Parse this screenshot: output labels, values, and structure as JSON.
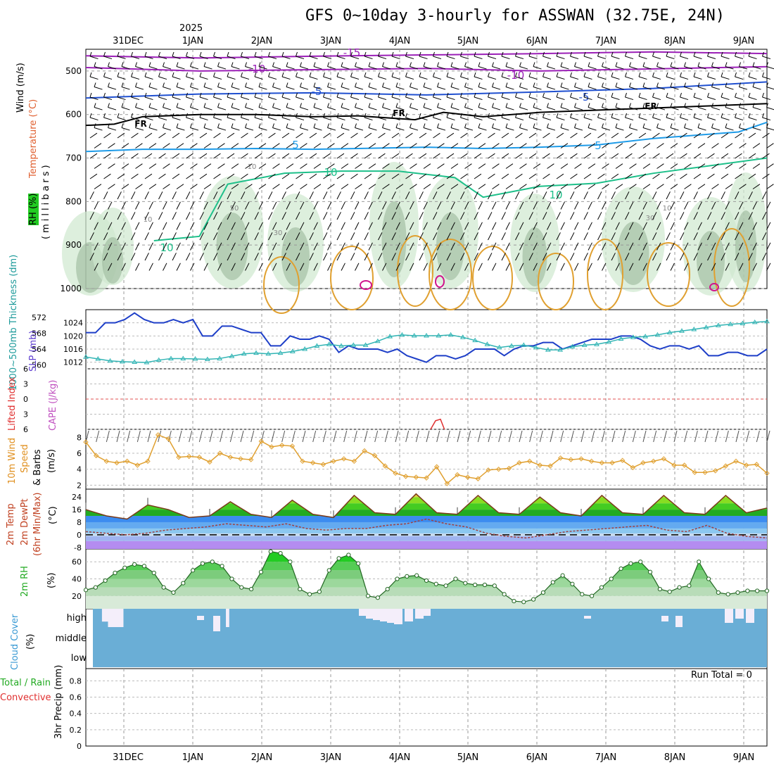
{
  "title": "GFS 0~10day 3-hourly for ASSWAN (32.75E, 24N)",
  "year_label": "2025",
  "day_labels": [
    "31DEC",
    "1JAN",
    "2JAN",
    "3JAN",
    "4JAN",
    "5JAN",
    "6JAN",
    "7JAN",
    "8JAN",
    "9JAN"
  ],
  "colors": {
    "purple": "#9b1fb7",
    "blue_dark": "#2050d0",
    "black": "#000000",
    "cyan": "#1e9be8",
    "green_line": "#1ec08a",
    "orange": "#e0a030",
    "magenta": "#d0148c",
    "slp": "#1e3fc8",
    "thickness": "#30b4b4",
    "wind10m": "#e0a030",
    "rh_green": "#22cc22",
    "cloud": "#6aaed6"
  },
  "chart_data": [
    {
      "panel": "upper_air",
      "type": "line",
      "title": "GFS 0~10day 3-hourly for ASSWAN (32.75E, 24N)",
      "ylabel": "(millibars)",
      "side_labels": [
        "Wind (m/s)",
        "Temperature (°C)",
        "RH (%)"
      ],
      "y_ticks": [
        "500",
        "600",
        "700",
        "800",
        "900",
        "1000"
      ],
      "ylim": [
        450,
        1000
      ],
      "contour_labels": [
        "-15",
        "-10",
        "-10",
        "-5",
        "-5",
        "FR",
        "FR",
        "FR",
        "5",
        "5",
        "10",
        "10",
        "10"
      ],
      "rh_labels": [
        "10",
        "50",
        "30",
        "10",
        "30",
        "10"
      ],
      "series": [
        {
          "label": "-15",
          "values": [
            [
              0,
              465
            ],
            [
              20,
              470
            ],
            [
              40,
              466
            ],
            [
              60,
              463
            ],
            [
              80,
              460
            ],
            [
              100,
              456
            ],
            [
              120,
              460
            ]
          ]
        },
        {
          "label": "-10",
          "values": [
            [
              0,
              492
            ],
            [
              20,
              500
            ],
            [
              40,
              497
            ],
            [
              60,
              494
            ],
            [
              80,
              500
            ],
            [
              100,
              495
            ],
            [
              120,
              490
            ]
          ]
        },
        {
          "label": "-5",
          "values": [
            [
              0,
              562
            ],
            [
              20,
              553
            ],
            [
              40,
              550
            ],
            [
              60,
              555
            ],
            [
              80,
              548
            ],
            [
              100,
              540
            ],
            [
              120,
              525
            ]
          ]
        },
        {
          "label": "FR",
          "values": [
            [
              0,
              625
            ],
            [
              5,
              622
            ],
            [
              10,
              605
            ],
            [
              20,
              600
            ],
            [
              30,
              600
            ],
            [
              40,
              605
            ],
            [
              48,
              603
            ],
            [
              58,
              612
            ],
            [
              63,
              595
            ],
            [
              70,
              605
            ],
            [
              80,
              595
            ],
            [
              100,
              585
            ],
            [
              120,
              575
            ]
          ]
        },
        {
          "label": "5",
          "values": [
            [
              0,
              685
            ],
            [
              10,
              680
            ],
            [
              20,
              680
            ],
            [
              30,
              678
            ],
            [
              40,
              680
            ],
            [
              60,
              675
            ],
            [
              70,
              678
            ],
            [
              80,
              675
            ],
            [
              90,
              670
            ],
            [
              100,
              655
            ],
            [
              115,
              640
            ],
            [
              120,
              618
            ]
          ]
        },
        {
          "label": "10",
          "values": [
            [
              12,
              890
            ],
            [
              20,
              880
            ],
            [
              25,
              760
            ],
            [
              35,
              735
            ],
            [
              45,
              730
            ],
            [
              55,
              730
            ],
            [
              65,
              745
            ],
            [
              70,
              790
            ],
            [
              80,
              765
            ],
            [
              90,
              758
            ],
            [
              100,
              735
            ],
            [
              120,
              700
            ]
          ]
        }
      ]
    },
    {
      "panel": "slp_thickness",
      "type": "line",
      "ylabel_left": "1000~500mb Thickness (dm)",
      "ylabel_right": "SLP (mb)",
      "left_ticks": [
        "572",
        "568",
        "564",
        "560"
      ],
      "right_ticks": [
        "1024",
        "1020",
        "1016",
        "1012"
      ],
      "series": [
        {
          "name": "SLP (mb)",
          "values": [
            1021,
            1021,
            1024,
            1024,
            1025,
            1027,
            1025,
            1024,
            1024,
            1025,
            1024,
            1025,
            1020,
            1020,
            1023,
            1023,
            1022,
            1021,
            1021,
            1017,
            1017,
            1020,
            1019,
            1019,
            1020,
            1019,
            1015,
            1017,
            1016,
            1016,
            1016,
            1015,
            1016,
            1014,
            1013,
            1012,
            1014,
            1014,
            1013,
            1014,
            1016,
            1016,
            1016,
            1014,
            1016,
            1017,
            1017,
            1018,
            1018,
            1016,
            1017,
            1018,
            1019,
            1019,
            1019,
            1020,
            1020,
            1019,
            1017,
            1016,
            1017,
            1017,
            1016,
            1017,
            1014,
            1014,
            1015,
            1015,
            1014,
            1014,
            1016
          ]
        },
        {
          "name": "1000~500mb Thickness (dm)",
          "values": [
            562.0,
            561.5,
            561.0,
            560.8,
            560.7,
            560.6,
            561.2,
            561.6,
            561.6,
            561.5,
            561.4,
            561.6,
            562.2,
            562.8,
            563.0,
            562.8,
            563.0,
            563.4,
            564.0,
            564.8,
            565.2,
            564.8,
            565.0,
            565.0,
            566.0,
            567.2,
            567.6,
            567.4,
            567.4,
            567.4,
            567.6,
            567.0,
            566.2,
            565.2,
            564.4,
            564.8,
            565.0,
            564.4,
            563.8,
            563.8,
            564.6,
            565.0,
            565.2,
            565.8,
            566.6,
            567.0,
            567.2,
            567.6,
            568.2,
            568.6,
            569.0,
            569.5,
            570.0,
            570.3,
            570.5,
            570.8,
            571.0
          ]
        }
      ]
    },
    {
      "panel": "stability",
      "type": "line",
      "ylabel_left": "Lifted Index",
      "ylabel_right": "CAPE (J/kg)",
      "y_ticks": [
        "6",
        "3",
        "0",
        "3",
        "6"
      ],
      "series": [
        {
          "name": "Lifted Index",
          "values": [
            [
              0.0,
              6.0
            ],
            [
              0.5,
              4.3
            ],
            [
              1.0,
              4.0
            ],
            [
              1.4,
              6.0
            ]
          ]
        }
      ]
    },
    {
      "panel": "wind10m",
      "type": "line",
      "ylabel": "10m Wind Speed & Barbs (m/s)",
      "y_ticks": [
        "8",
        "6",
        "4",
        "2"
      ],
      "series": [
        {
          "name": "10m Wind Speed",
          "values": [
            7.4,
            5.7,
            5.0,
            4.8,
            5.0,
            4.5,
            5.0,
            8.3,
            7.8,
            5.5,
            5.6,
            5.5,
            4.9,
            6.0,
            5.5,
            5.3,
            5.2,
            7.5,
            6.8,
            7.0,
            6.9,
            5.0,
            4.8,
            4.6,
            5.0,
            5.3,
            5.0,
            6.3,
            5.7,
            4.4,
            3.5,
            3.1,
            3.0,
            2.9,
            4.3,
            2.2,
            3.3,
            3.0,
            2.8,
            3.9,
            4.0,
            4.1,
            4.8,
            5.0,
            4.5,
            4.4,
            5.4,
            5.2,
            5.3,
            5.0,
            4.8,
            4.8,
            5.1,
            4.2,
            4.8,
            5.0,
            5.3,
            4.5,
            4.5,
            3.6,
            3.6,
            3.8,
            4.4,
            5.0,
            4.5,
            4.6,
            3.5
          ]
        }
      ]
    },
    {
      "panel": "temp2m",
      "type": "area",
      "ylabel": "2m Temp 2m DewPt (6hr Min/Max) (°C)",
      "y_ticks": [
        "24",
        "16",
        "8",
        "0",
        "-8"
      ],
      "series": [
        {
          "name": "2m Temp",
          "values": [
            16,
            12,
            10,
            19,
            16,
            11,
            12,
            21,
            13,
            11,
            22,
            13,
            11,
            25,
            14,
            13,
            26,
            14,
            13,
            25,
            14,
            13,
            24,
            14,
            12,
            25,
            14,
            13,
            25,
            14,
            13,
            25,
            14,
            17
          ]
        },
        {
          "name": "2m DewPt",
          "values": [
            2,
            1,
            0,
            1,
            3,
            4,
            5,
            7,
            6,
            5,
            7,
            4,
            3,
            4,
            4,
            6,
            7,
            10,
            7,
            5,
            1,
            -1,
            -2,
            0,
            2,
            3,
            4,
            5,
            6,
            3,
            2,
            6,
            1,
            -1,
            -2
          ]
        }
      ]
    },
    {
      "panel": "rh2m",
      "type": "area",
      "ylabel": "2m RH (%)",
      "y_ticks": [
        "60",
        "40",
        "20"
      ],
      "series": [
        {
          "name": "2m RH",
          "values": [
            27,
            30,
            38,
            47,
            53,
            57,
            55,
            47,
            30,
            24,
            35,
            50,
            58,
            60,
            55,
            40,
            30,
            28,
            48,
            72,
            70,
            60,
            28,
            22,
            25,
            50,
            64,
            68,
            58,
            20,
            18,
            28,
            40,
            43,
            44,
            38,
            34,
            32,
            40,
            35,
            33,
            33,
            32,
            22,
            14,
            13,
            16,
            24,
            36,
            44,
            34,
            22,
            20,
            30,
            40,
            52,
            58,
            60,
            48,
            28,
            25,
            30,
            32,
            60,
            40,
            24,
            22,
            24,
            26,
            26,
            26
          ]
        }
      ]
    },
    {
      "panel": "cloud_cover",
      "type": "bar",
      "ylabel": "Cloud Cover (%)",
      "level_labels": [
        "high",
        "middle",
        "low"
      ],
      "series": [
        {
          "name": "high",
          "values": [
            0,
            0,
            0,
            70,
            70,
            100,
            100,
            100,
            100,
            100,
            0,
            0,
            0,
            0,
            0,
            0,
            0,
            0,
            0,
            0,
            0,
            0,
            0,
            0,
            0,
            0,
            0,
            0,
            0,
            0,
            0,
            0,
            0,
            0,
            0,
            0,
            0,
            0,
            0,
            0,
            0,
            0,
            0,
            0,
            100,
            0,
            0,
            0,
            0,
            0,
            0,
            0,
            0,
            0,
            0,
            0,
            0,
            0,
            0,
            0,
            0,
            0,
            0,
            0,
            0,
            0,
            0,
            0,
            0,
            0,
            0,
            0,
            0,
            0,
            0,
            0,
            0,
            0,
            0,
            0,
            0,
            0,
            0,
            0,
            0,
            0,
            0,
            0,
            0,
            0,
            0,
            0,
            0,
            0,
            0,
            0,
            0,
            0,
            0,
            0,
            0,
            0,
            0,
            0,
            0,
            0,
            0,
            0,
            0,
            0,
            0,
            0,
            0,
            0,
            0,
            0,
            0,
            0,
            0,
            0,
            0,
            0,
            0,
            0,
            0,
            0,
            0,
            0,
            0,
            0,
            0,
            0,
            0,
            0,
            0,
            0,
            0,
            0,
            0,
            0,
            0,
            0,
            0,
            0,
            0,
            0,
            0,
            0,
            0,
            0,
            0,
            0,
            0,
            0,
            0,
            0,
            0,
            0,
            0,
            0,
            0,
            0,
            0,
            0,
            0,
            0,
            0,
            0,
            0,
            0,
            0,
            0,
            0,
            0,
            0,
            0,
            0,
            0,
            0,
            0,
            0,
            0,
            0,
            0,
            0,
            0,
            0,
            0,
            0,
            0,
            0,
            0,
            0,
            0,
            0,
            0,
            0,
            0,
            0,
            0,
            0,
            0,
            0,
            0,
            0,
            0,
            0,
            0,
            0,
            0,
            0,
            0,
            0,
            0,
            0,
            0,
            0,
            0,
            0,
            0,
            0,
            0,
            0
          ]
        }
      ]
    },
    {
      "panel": "precip",
      "type": "bar",
      "ylabel_left": "Total / Rain Convective",
      "ylabel": "3hr Precip (mm)",
      "y_ticks": [
        "0.8",
        "0.6",
        "0.4",
        "0.2",
        "0"
      ],
      "annotation": "Run Total = 0",
      "values": []
    }
  ],
  "side_labels": {
    "wind": "Wind (m/s)",
    "temperature": "Temperature (°C)",
    "rh": "RH (%)",
    "millibars": "(millibars)",
    "thickness": "1000~500mb Thickness (dm)",
    "slp": "SLP (mb)",
    "lifted": "Lifted Index",
    "cape": "CAPE (J/kg)",
    "wind10m_a": "10m Wind",
    "wind10m_b": "Speed",
    "wind10m_c": "& Barbs",
    "ms": "(m/s)",
    "temp2m": "2m Temp",
    "dew2m": "2m DewPt",
    "minmax": "(6hr Min/Max)",
    "degc": "(°C)",
    "rh2m": "2m RH",
    "pct": "(%)",
    "cloud": "Cloud Cover",
    "precip_total": "Total / Rain",
    "precip_conv": "Convective",
    "precip_mm": "3hr Precip (mm)"
  },
  "run_total": "Run Total = 0"
}
